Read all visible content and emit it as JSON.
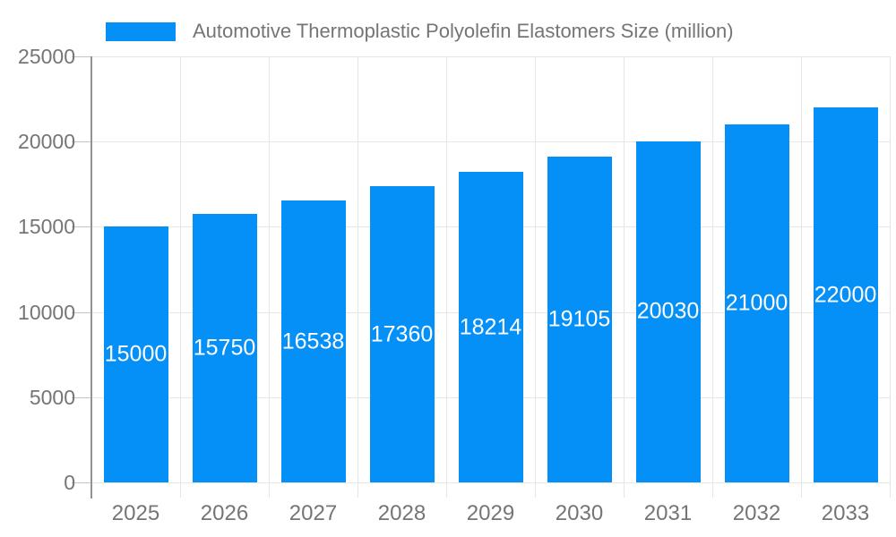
{
  "chart_data": {
    "type": "bar",
    "title": "Automotive Thermoplastic Polyolefin Elastomers Size (million)",
    "categories": [
      "2025",
      "2026",
      "2027",
      "2028",
      "2029",
      "2030",
      "2031",
      "2032",
      "2033"
    ],
    "values": [
      15000,
      15750,
      16538,
      17360,
      18214,
      19105,
      20030,
      21000,
      22000
    ],
    "xlabel": "",
    "ylabel": "",
    "ylim": [
      0,
      25000
    ],
    "yticks": [
      0,
      5000,
      10000,
      15000,
      20000,
      25000
    ],
    "grid": "horizontal and vertical light gridlines",
    "legend_position": "top-left",
    "bar_color": "#0590F8",
    "bar_label_color": "#ffffff",
    "axis_text_color": "#757575",
    "gridline_color": "#e6e6e6",
    "tick_color": "#c4c4c4",
    "axis_line_color": "#919191",
    "background_color": "#ffffff"
  }
}
